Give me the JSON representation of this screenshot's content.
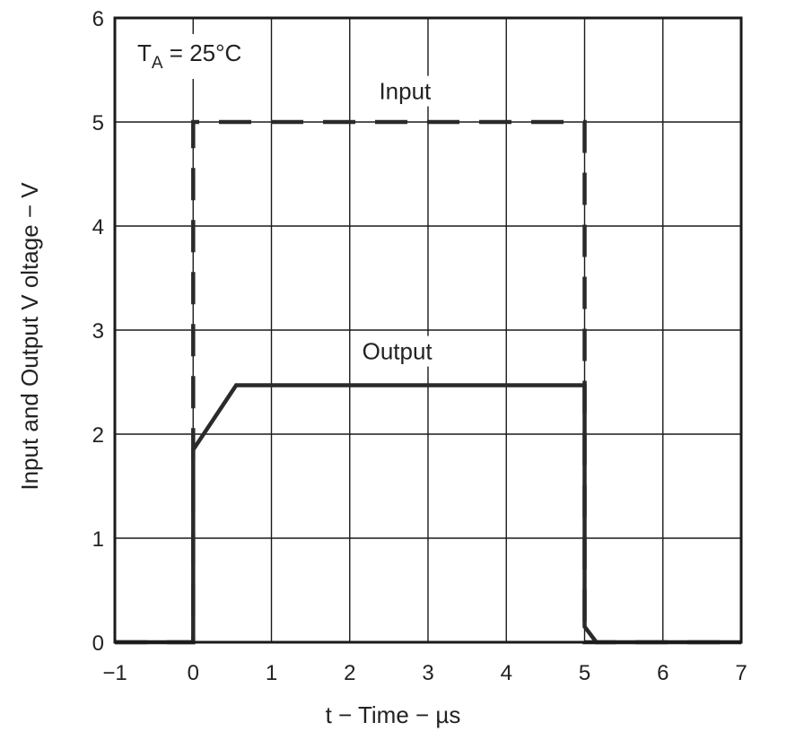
{
  "chart_data": {
    "type": "line",
    "title": "",
    "xlabel": "t − Time − µs",
    "ylabel": "Input and Output V oltage − V",
    "xlim": [
      -1,
      7
    ],
    "ylim": [
      0,
      6
    ],
    "x_ticks": [
      -1,
      0,
      1,
      2,
      3,
      4,
      5,
      6,
      7
    ],
    "y_ticks": [
      0,
      1,
      2,
      3,
      4,
      5,
      6
    ],
    "x_tick_labels": [
      "−1",
      "0",
      "1",
      "2",
      "3",
      "4",
      "5",
      "6",
      "7"
    ],
    "y_tick_labels": [
      "0",
      "1",
      "2",
      "3",
      "4",
      "5",
      "6"
    ],
    "grid": true,
    "legend": "none",
    "series": [
      {
        "name": "Input",
        "style": "dashed",
        "color": "#2a2a2a",
        "points": [
          [
            -1,
            0
          ],
          [
            0,
            0
          ],
          [
            0,
            5
          ],
          [
            5,
            5
          ],
          [
            5,
            0
          ],
          [
            7,
            0
          ]
        ]
      },
      {
        "name": "Output",
        "style": "solid",
        "color": "#2a2a2a",
        "points": [
          [
            -1,
            0
          ],
          [
            0,
            0
          ],
          [
            0,
            1.85
          ],
          [
            0.55,
            2.47
          ],
          [
            5,
            2.47
          ],
          [
            5,
            0.15
          ],
          [
            5.15,
            0
          ],
          [
            7,
            0
          ]
        ]
      }
    ],
    "annotations": [
      {
        "text": "Input",
        "x": 2.5,
        "y": 5.15
      },
      {
        "text": "Output",
        "x": 2.4,
        "y": 2.65
      }
    ],
    "condition": {
      "symbol": "T",
      "subscript": "A",
      "value": " = 25°C"
    }
  }
}
